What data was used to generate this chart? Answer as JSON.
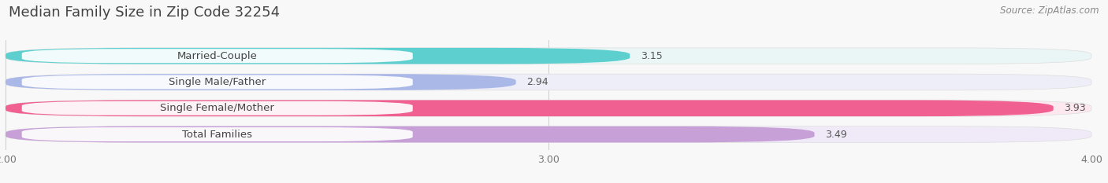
{
  "title": "Median Family Size in Zip Code 32254",
  "source": "Source: ZipAtlas.com",
  "categories": [
    "Married-Couple",
    "Single Male/Father",
    "Single Female/Mother",
    "Total Families"
  ],
  "values": [
    3.15,
    2.94,
    3.93,
    3.49
  ],
  "bar_colors": [
    "#5ecfcf",
    "#aab8e8",
    "#f06090",
    "#c8a0d8"
  ],
  "bar_bg_colors": [
    "#eaf6f6",
    "#eeeef8",
    "#fde8f0",
    "#f0eaf8"
  ],
  "label_bg_colors": [
    "#ffffff",
    "#ffffff",
    "#ffffff",
    "#ffffff"
  ],
  "xlim": [
    2.0,
    4.0
  ],
  "xticks": [
    2.0,
    3.0,
    4.0
  ],
  "xtick_labels": [
    "2.00",
    "3.00",
    "4.00"
  ],
  "bar_height": 0.62,
  "label_fontsize": 9.5,
  "value_fontsize": 9,
  "title_fontsize": 13,
  "source_fontsize": 8.5,
  "figsize": [
    14.06,
    2.33
  ],
  "dpi": 100
}
